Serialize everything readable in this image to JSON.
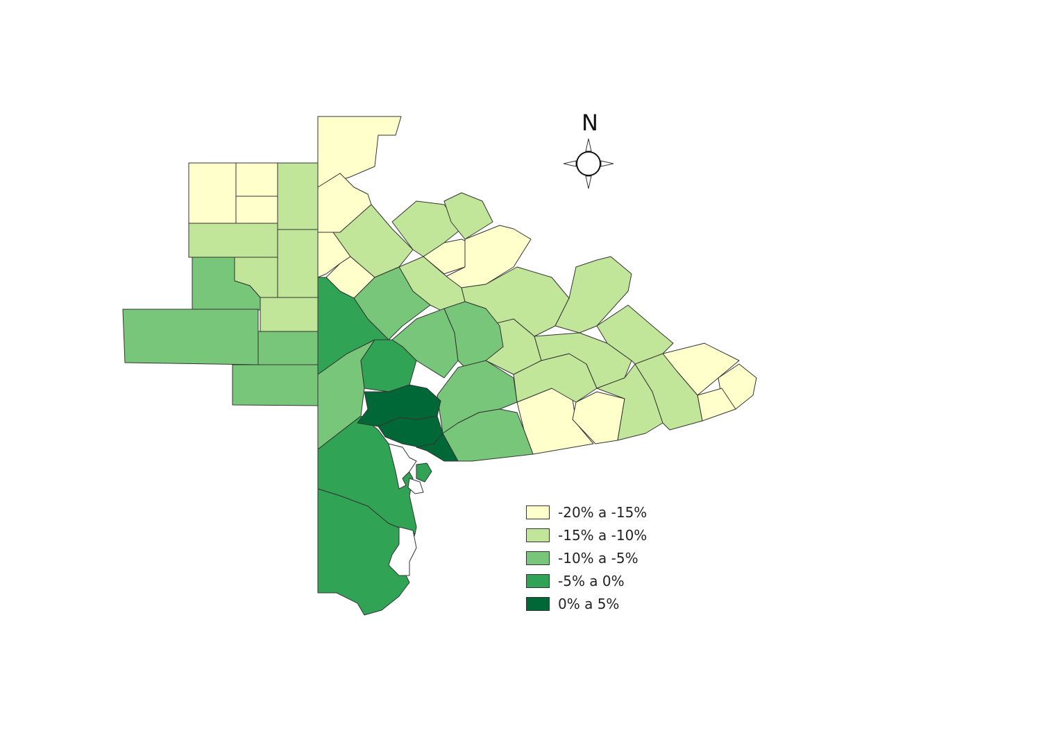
{
  "legend": {
    "items": [
      {
        "label": "-20% a -15%",
        "color": "#ffffcc"
      },
      {
        "label": "-15% a -10%",
        "color": "#c2e699"
      },
      {
        "label": "-10% a -5%",
        "color": "#78c679"
      },
      {
        "label": "-5% a 0%",
        "color": "#31a354"
      },
      {
        "label": "0% a 5%",
        "color": "#006837"
      }
    ]
  },
  "north_arrow": {
    "label": "N",
    "icon": "compass-rose-icon"
  }
}
